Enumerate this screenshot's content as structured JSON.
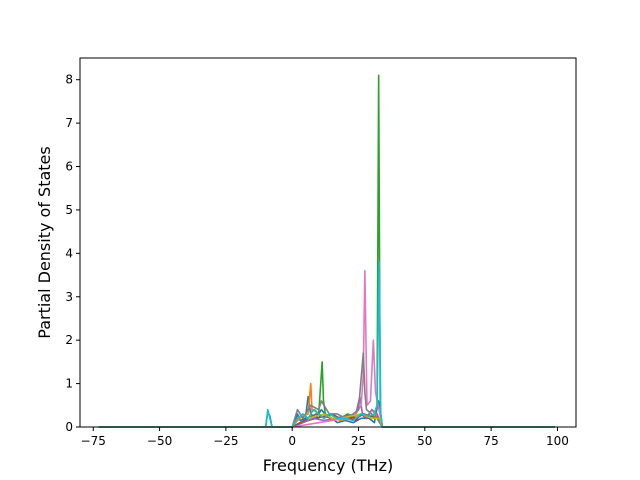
{
  "chart_data": {
    "type": "line",
    "title": "",
    "xlabel": "Frequency (THz)",
    "ylabel": "Partial Density of States",
    "xlim": [
      -80,
      107
    ],
    "ylim": [
      0,
      8.5
    ],
    "x_ticks": [
      -75,
      -50,
      -25,
      0,
      25,
      50,
      75,
      100
    ],
    "y_ticks": [
      0,
      1,
      2,
      3,
      4,
      5,
      6,
      7,
      8
    ],
    "grid": false,
    "legend": "none",
    "series": [
      {
        "color": "#1f77b4",
        "x": [
          -73,
          -10,
          -9.2,
          -8.4,
          -7.6,
          0,
          1,
          2,
          3,
          5,
          6,
          7,
          9,
          11,
          13,
          15,
          17,
          20,
          23,
          26,
          29,
          31,
          32.5,
          33.3,
          34,
          99
        ],
        "values": [
          0,
          0,
          0.35,
          0.25,
          0,
          0,
          0.1,
          0.3,
          0.15,
          0.2,
          0.7,
          0.3,
          0.2,
          0.4,
          0.25,
          0.2,
          0.1,
          0.15,
          0.1,
          0.2,
          0.2,
          0.1,
          0.6,
          0.3,
          0,
          0
        ]
      },
      {
        "color": "#ff7f0e",
        "x": [
          -73,
          0,
          2,
          4,
          6,
          7,
          7.5,
          8.5,
          10,
          12,
          14,
          18,
          22,
          26,
          28,
          30,
          32,
          33,
          34,
          99
        ],
        "values": [
          0,
          0,
          0.15,
          0.25,
          0.3,
          1.0,
          0.35,
          0.4,
          0.3,
          0.2,
          0.3,
          0.15,
          0.2,
          0.3,
          0.2,
          0.4,
          0.25,
          0.1,
          0,
          0
        ]
      },
      {
        "color": "#2ca02c",
        "x": [
          -73,
          0,
          4,
          8,
          10,
          11.3,
          11.8,
          12.5,
          15,
          18,
          21,
          24,
          27,
          29,
          31,
          32,
          32.6,
          33.2,
          34,
          99
        ],
        "values": [
          0,
          0,
          0.1,
          0.2,
          0.3,
          1.5,
          0.6,
          0.3,
          0.2,
          0.2,
          0.3,
          0.2,
          0.3,
          0.2,
          0.3,
          0.5,
          8.1,
          0.4,
          0,
          0
        ]
      },
      {
        "color": "#d62728",
        "x": [
          -73,
          0,
          3,
          6,
          9,
          12,
          15,
          18,
          20,
          22,
          24,
          26,
          28,
          30,
          32,
          34,
          99
        ],
        "values": [
          0,
          0,
          0.1,
          0.15,
          0.2,
          0.25,
          0.2,
          0.2,
          0.25,
          0.2,
          0.15,
          0.3,
          0.2,
          0.25,
          0.2,
          0,
          0
        ]
      },
      {
        "color": "#9467bd",
        "x": [
          -73,
          0,
          4,
          8,
          12,
          16,
          20,
          24,
          25.5,
          26.5,
          28,
          30,
          32,
          34,
          99
        ],
        "values": [
          0,
          0,
          0.1,
          0.2,
          0.15,
          0.2,
          0.25,
          0.3,
          0.7,
          0.3,
          0.2,
          0.4,
          0.3,
          0,
          0
        ]
      },
      {
        "color": "#8c564b",
        "x": [
          -73,
          0,
          3,
          6,
          9,
          12,
          15,
          18,
          21,
          24,
          27,
          30,
          33,
          34,
          99
        ],
        "values": [
          0,
          0,
          0.1,
          0.2,
          0.3,
          0.2,
          0.3,
          0.2,
          0.25,
          0.2,
          0.3,
          0.25,
          0.2,
          0,
          0
        ]
      },
      {
        "color": "#e377c2",
        "x": [
          -73,
          0,
          10,
          20,
          24,
          26,
          26.8,
          27.4,
          28.2,
          29.5,
          30.6,
          31.4,
          32.4,
          34,
          99
        ],
        "values": [
          0,
          0,
          0.1,
          0.2,
          0.3,
          0.5,
          1.2,
          3.6,
          0.5,
          0.6,
          2.0,
          0.8,
          0.5,
          0,
          0
        ]
      },
      {
        "color": "#7f7f7f",
        "x": [
          -73,
          0,
          2,
          4,
          7,
          10,
          11,
          12,
          14,
          17,
          20,
          23,
          25,
          26.8,
          27.4,
          28,
          30,
          32,
          34,
          99
        ],
        "values": [
          0,
          0,
          0.4,
          0.2,
          0.5,
          0.4,
          0.6,
          0.5,
          0.3,
          0.3,
          0.2,
          0.3,
          0.4,
          1.7,
          0.8,
          0.4,
          0.3,
          0.2,
          0,
          0
        ]
      },
      {
        "color": "#bcbd22",
        "x": [
          -73,
          0,
          2,
          4,
          6,
          9,
          12,
          15,
          18,
          22,
          26,
          30,
          33,
          34,
          99
        ],
        "values": [
          0,
          0,
          0.2,
          0.3,
          0.2,
          0.25,
          0.3,
          0.2,
          0.2,
          0.25,
          0.3,
          0.2,
          0.2,
          0,
          0
        ]
      },
      {
        "color": "#17becf",
        "x": [
          -73,
          -10,
          -9.2,
          -8.4,
          -7.6,
          0,
          2,
          4,
          6,
          8,
          10,
          12,
          14,
          17,
          20,
          23,
          26,
          29,
          31,
          32,
          32.8,
          33.4,
          34,
          99
        ],
        "values": [
          0,
          0,
          0.4,
          0.2,
          0,
          0,
          0.2,
          0.3,
          0.2,
          0.4,
          0.3,
          0.2,
          0.3,
          0.2,
          0.2,
          0.15,
          0.3,
          0.25,
          0.3,
          0.5,
          3.8,
          0.3,
          0,
          0
        ]
      }
    ]
  }
}
